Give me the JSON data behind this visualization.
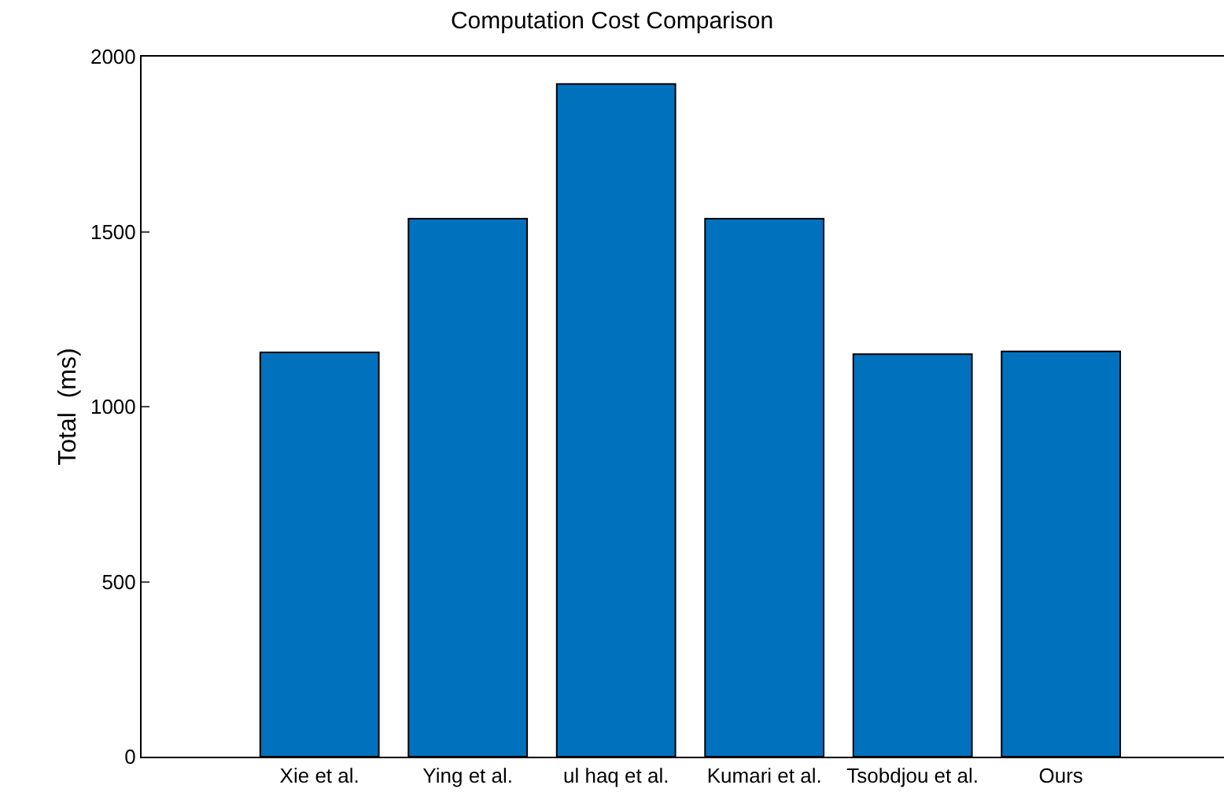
{
  "chart_data": {
    "type": "bar",
    "title": "Computation Cost Comparison",
    "ylabel": "Total  (ms)",
    "categories": [
      "Xie et al.",
      "Ying et al.",
      "ul haq et al.",
      "Kumari et al.",
      "Tsobdjou et al.",
      "Ours"
    ],
    "values": [
      1155,
      1537,
      1922,
      1537,
      1150,
      1158
    ],
    "color": "#0072bd",
    "ylim": [
      0,
      2000
    ],
    "yticks": [
      0,
      500,
      1000,
      1500,
      2000
    ],
    "grid": false
  }
}
